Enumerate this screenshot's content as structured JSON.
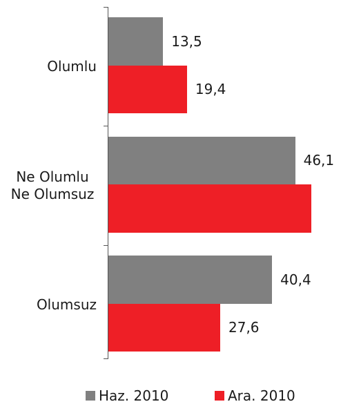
{
  "chart_data": {
    "type": "hbar",
    "categories": [
      "Olumlu",
      "Ne Olumlu Ne Olumsuz",
      "Olumsuz"
    ],
    "series": [
      {
        "name": "Haz. 2010",
        "color": "#808080",
        "values": [
          13.5,
          46.1,
          40.4
        ],
        "value_labels": [
          "13,5",
          "46,1",
          "40,4"
        ]
      },
      {
        "name": "Ara. 2010",
        "color": "#ee1f26",
        "values": [
          19.4,
          50.1,
          27.6
        ],
        "value_labels": [
          "19,4",
          null,
          "27,6"
        ]
      }
    ],
    "legend": "bottom"
  }
}
